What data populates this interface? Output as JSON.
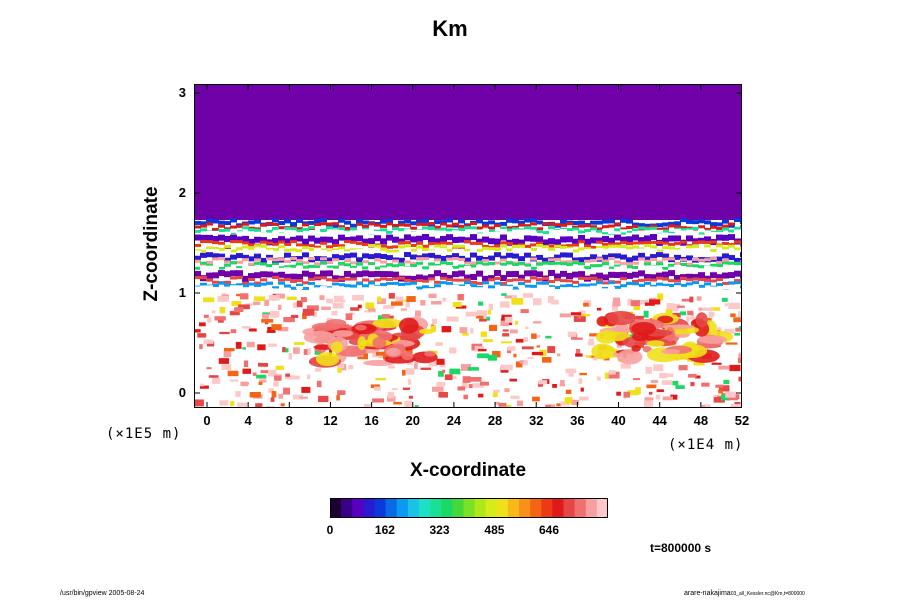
{
  "header": {
    "title": "Km"
  },
  "footer": {
    "left": "/usr/bin/gpview 2005-08-24",
    "right": "arare-nakajima",
    "right_small": "03_all_Kessler.nc@Km,t=800000"
  },
  "colorbar": {
    "ticks": [
      "0",
      "162",
      "323",
      "485",
      "646"
    ],
    "tick_values": [
      0,
      162,
      323,
      485,
      646
    ],
    "range": [
      0,
      820
    ],
    "colors": [
      "#1a0033",
      "#3a0088",
      "#5a00c0",
      "#2a1ad0",
      "#0a3adc",
      "#0a6ae6",
      "#0a9af0",
      "#1ac2e6",
      "#1ae0c8",
      "#1ae096",
      "#1ad864",
      "#46d83a",
      "#7ae028",
      "#aee81a",
      "#d6ec1a",
      "#f0e01a",
      "#f8b81a",
      "#f8901a",
      "#f46414",
      "#ec3a14",
      "#e01a1a",
      "#e64646",
      "#f07070",
      "#f8a0a0",
      "#fcc8c8"
    ]
  },
  "chart_data": {
    "type": "heatmap",
    "title": "Km",
    "xlabel": "X-coordinate",
    "ylabel": "Z-coordinate",
    "x_ticks": [
      "0",
      "4",
      "8",
      "12",
      "16",
      "20",
      "24",
      "28",
      "32",
      "36",
      "40",
      "44",
      "48",
      "52"
    ],
    "x_tick_values": [
      0,
      4,
      8,
      12,
      16,
      20,
      24,
      28,
      32,
      36,
      40,
      44,
      48,
      52
    ],
    "x_scale": "(×1E4 m)",
    "y_ticks": [
      "0",
      "1",
      "2",
      "3"
    ],
    "y_tick_values": [
      0,
      1,
      2,
      3
    ],
    "y_scale": "(×1E5 m)",
    "xlim": [
      -1,
      52
    ],
    "ylim": [
      -0.1,
      3.1
    ],
    "time_label": "t=800000 s",
    "regions": [
      {
        "description": "upper layer, uniform low value",
        "z_range": [
          1.73,
          3.1
        ],
        "value": 0
      },
      {
        "description": "layered band with high variability",
        "z_range": [
          1.0,
          1.75
        ],
        "value_range": [
          0,
          820
        ]
      },
      {
        "description": "lower turbulent layer, mostly high values",
        "z_range": [
          -0.1,
          1.0
        ],
        "value_range": [
          400,
          820
        ]
      }
    ]
  }
}
